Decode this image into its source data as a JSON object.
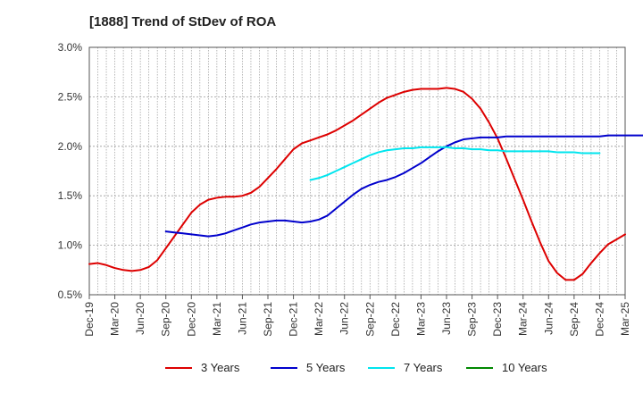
{
  "chart_data": {
    "type": "line",
    "title": "[1888]  Trend of StDev of ROA",
    "xlabel": "",
    "ylabel": "",
    "ylim": [
      0.5,
      3.0
    ],
    "yticks": [
      0.5,
      1.0,
      1.5,
      2.0,
      2.5,
      3.0
    ],
    "ytick_labels": [
      "0.5%",
      "1.0%",
      "1.5%",
      "2.0%",
      "2.5%",
      "3.0%"
    ],
    "xtick_labels": [
      "Dec-19",
      "Mar-20",
      "Jun-20",
      "Sep-20",
      "Dec-20",
      "Mar-21",
      "Jun-21",
      "Sep-21",
      "Dec-21",
      "Mar-22",
      "Jun-22",
      "Sep-22",
      "Dec-22",
      "Mar-23",
      "Jun-23",
      "Sep-23",
      "Dec-23",
      "Mar-24",
      "Jun-24",
      "Sep-24",
      "Dec-24",
      "Mar-25"
    ],
    "grid": true,
    "legend_position": "bottom",
    "series": [
      {
        "name": "3 Years",
        "color": "#dd0000",
        "start_index": 0,
        "values": [
          0.81,
          0.82,
          0.8,
          0.77,
          0.75,
          0.74,
          0.75,
          0.78,
          0.85,
          0.97,
          1.09,
          1.21,
          1.33,
          1.41,
          1.46,
          1.48,
          1.49,
          1.49,
          1.5,
          1.53,
          1.59,
          1.68,
          1.77,
          1.87,
          1.97,
          2.03,
          2.06,
          2.09,
          2.12,
          2.16,
          2.21,
          2.26,
          2.32,
          2.38,
          2.44,
          2.49,
          2.52,
          2.55,
          2.57,
          2.58,
          2.58,
          2.58,
          2.59,
          2.58,
          2.55,
          2.48,
          2.38,
          2.24,
          2.08,
          1.88,
          1.67,
          1.46,
          1.24,
          1.03,
          0.84,
          0.72,
          0.65,
          0.65,
          0.71,
          0.82,
          0.92,
          1.01,
          1.06,
          1.11
        ]
      },
      {
        "name": "5 Years",
        "color": "#0000cc",
        "start_index": 9,
        "values": [
          1.14,
          1.13,
          1.12,
          1.11,
          1.1,
          1.09,
          1.1,
          1.12,
          1.15,
          1.18,
          1.21,
          1.23,
          1.24,
          1.25,
          1.25,
          1.24,
          1.23,
          1.24,
          1.26,
          1.3,
          1.37,
          1.44,
          1.51,
          1.57,
          1.61,
          1.64,
          1.66,
          1.69,
          1.73,
          1.78,
          1.83,
          1.89,
          1.95,
          2.0,
          2.04,
          2.07,
          2.08,
          2.09,
          2.09,
          2.09,
          2.1,
          2.1,
          2.1,
          2.1,
          2.1,
          2.1,
          2.1,
          2.1,
          2.1,
          2.1,
          2.1,
          2.1,
          2.11,
          2.11,
          2.11,
          2.11,
          2.11,
          2.11,
          2.11,
          2.12,
          2.13
        ]
      },
      {
        "name": "7 Years",
        "color": "#00e5ee",
        "start_index": 26,
        "values": [
          1.66,
          1.68,
          1.71,
          1.75,
          1.79,
          1.83,
          1.87,
          1.91,
          1.94,
          1.96,
          1.97,
          1.98,
          1.98,
          1.99,
          1.99,
          1.99,
          1.99,
          1.98,
          1.98,
          1.97,
          1.97,
          1.96,
          1.96,
          1.95,
          1.95,
          1.95,
          1.95,
          1.95,
          1.95,
          1.94,
          1.94,
          1.94,
          1.93,
          1.93,
          1.93
        ]
      },
      {
        "name": "10 Years",
        "color": "#008800",
        "start_index": 0,
        "values": []
      }
    ]
  }
}
